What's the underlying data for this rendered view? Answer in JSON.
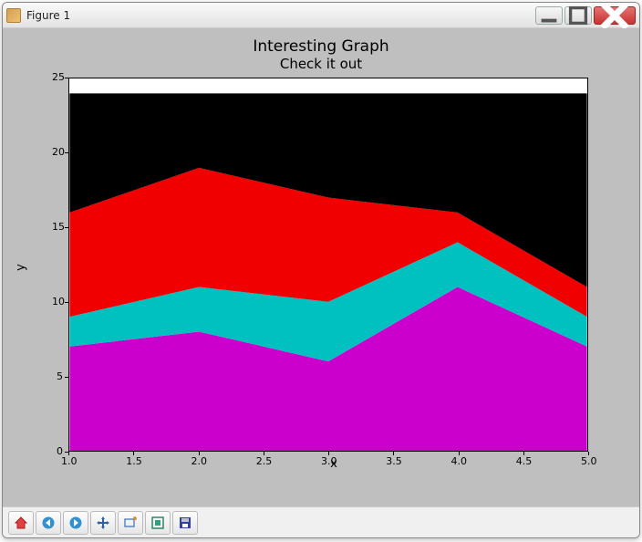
{
  "window": {
    "title": "Figure 1"
  },
  "chart": {
    "type": "stacked-area",
    "title": "Interesting Graph",
    "subtitle": "Check it out",
    "xlabel": "x",
    "ylabel": "y",
    "xlim": [
      1.0,
      5.0
    ],
    "ylim": [
      0,
      25
    ],
    "xticks": [
      1.0,
      1.5,
      2.0,
      2.5,
      3.0,
      3.5,
      4.0,
      4.5,
      5.0
    ],
    "xtick_labels": [
      "1.0",
      "1.5",
      "2.0",
      "2.5",
      "3.0",
      "3.5",
      "4.0",
      "4.5",
      "5.0"
    ],
    "yticks": [
      0,
      5,
      10,
      15,
      20,
      25
    ],
    "ytick_labels": [
      "0",
      "5",
      "10",
      "15",
      "20",
      "25"
    ],
    "x": [
      1,
      2,
      3,
      4,
      5
    ],
    "series": [
      {
        "name": "magenta",
        "color": "#cc00cc",
        "values": [
          7,
          8,
          6,
          11,
          7
        ]
      },
      {
        "name": "teal",
        "color": "#00c0c0",
        "values": [
          2,
          3,
          4,
          3,
          2
        ]
      },
      {
        "name": "red",
        "color": "#f00000",
        "values": [
          7,
          8,
          7,
          2,
          2
        ]
      },
      {
        "name": "black",
        "color": "#000000",
        "values": [
          8,
          5,
          7,
          8,
          13
        ]
      }
    ],
    "cumulative_tops": {
      "magenta": [
        7,
        8,
        6,
        11,
        7
      ],
      "teal": [
        9,
        11,
        10,
        14,
        9
      ],
      "red": [
        16,
        19,
        17,
        16,
        11
      ],
      "black": [
        24,
        24,
        24,
        24,
        24
      ]
    },
    "background_color": "#bfbfbf",
    "axes_facecolor": "#ffffff",
    "axes_edgecolor": "#000000",
    "title_fontsize": 17,
    "subtitle_fontsize": 15,
    "label_fontsize": 13,
    "tick_fontsize": 11
  },
  "toolbar": {
    "buttons": [
      "home",
      "back",
      "forward",
      "pan",
      "zoom",
      "configure",
      "save"
    ]
  }
}
